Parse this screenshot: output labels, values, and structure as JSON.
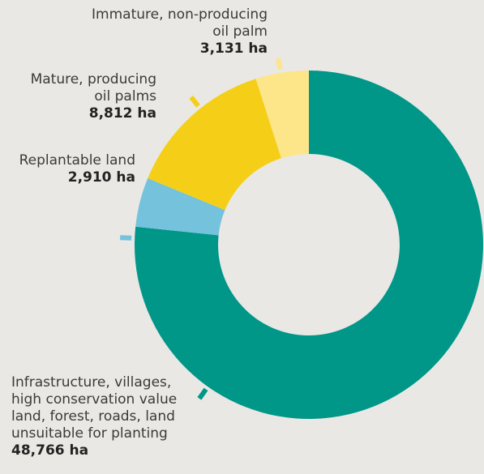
{
  "chart_data": {
    "type": "pie",
    "style": "donut",
    "unit": "ha",
    "series": [
      {
        "name": "Infrastructure, villages, high conservation value land, forest, roads, land unsuitable for planting",
        "value": 48766,
        "label": "48,766 ha",
        "color": "#009688"
      },
      {
        "name": "Replantable land",
        "value": 2910,
        "label": "2,910 ha",
        "color": "#74c2dc"
      },
      {
        "name": "Mature, producing oil palms",
        "value": 8812,
        "label": "8,812 ha",
        "color": "#f5cf17"
      },
      {
        "name": "Immature, non-producing oil palm",
        "value": 3131,
        "label": "3,131 ha",
        "color": "#fde58a"
      }
    ],
    "labels_text": [
      "Infrastructure, villages,\nhigh conservation value\nland, forest, roads, land\nunsuitable for planting",
      "Replantable land",
      "Mature, producing\noil palms",
      "Immature, non-producing\noil palm"
    ],
    "background": "#e9e8e4"
  }
}
